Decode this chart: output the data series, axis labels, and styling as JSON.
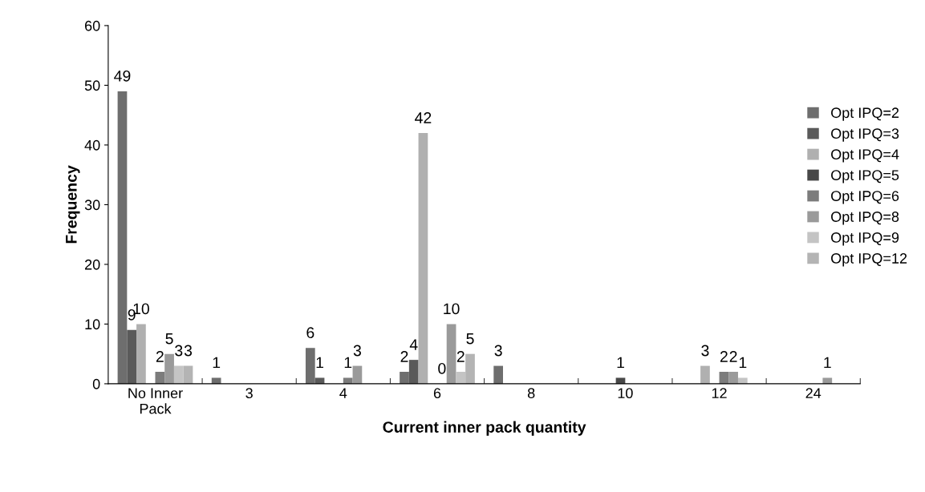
{
  "chart_data": {
    "type": "bar",
    "xlabel": "Current inner pack quantity",
    "ylabel": "Frequency",
    "categories": [
      "No Inner\nPack",
      "3",
      "4",
      "6",
      "8",
      "10",
      "12",
      "24"
    ],
    "series": [
      {
        "name": "Opt IPQ=2",
        "color": "#6e6e6e",
        "values": [
          49,
          1,
          6,
          2,
          3,
          0,
          0,
          0
        ],
        "value_labels": [
          "49",
          "1",
          "6",
          "2",
          "3",
          null,
          null,
          null
        ]
      },
      {
        "name": "Opt IPQ=3",
        "color": "#5a5a5a",
        "values": [
          9,
          0,
          1,
          4,
          0,
          0,
          0,
          0
        ],
        "value_labels": [
          "9",
          null,
          "1",
          "4",
          null,
          null,
          null,
          null
        ]
      },
      {
        "name": "Opt IPQ=4",
        "color": "#b0b0b0",
        "values": [
          10,
          0,
          0,
          42,
          0,
          0,
          3,
          0
        ],
        "value_labels": [
          "10",
          null,
          null,
          "42",
          null,
          null,
          "3",
          null
        ]
      },
      {
        "name": "Opt IPQ=5",
        "color": "#484848",
        "values": [
          0,
          0,
          0,
          0,
          0,
          1,
          0,
          0
        ],
        "value_labels": [
          null,
          null,
          null,
          null,
          null,
          "1",
          null,
          null
        ]
      },
      {
        "name": "Opt IPQ=6",
        "color": "#7c7c7c",
        "values": [
          2,
          0,
          1,
          0,
          0,
          0,
          2,
          0
        ],
        "value_labels": [
          "2",
          null,
          "1",
          "0",
          null,
          null,
          "2",
          null
        ]
      },
      {
        "name": "Opt IPQ=8",
        "color": "#9a9a9a",
        "values": [
          5,
          0,
          3,
          10,
          0,
          0,
          2,
          1
        ],
        "value_labels": [
          "5",
          null,
          "3",
          "10",
          null,
          null,
          "2",
          "1"
        ]
      },
      {
        "name": "Opt IPQ=9",
        "color": "#c4c4c4",
        "values": [
          3,
          0,
          0,
          2,
          0,
          0,
          1,
          0
        ],
        "value_labels": [
          "3",
          null,
          null,
          "2",
          null,
          null,
          "1",
          null
        ]
      },
      {
        "name": "Opt IPQ=12",
        "color": "#b4b4b4",
        "values": [
          3,
          0,
          0,
          5,
          0,
          0,
          0,
          0
        ],
        "value_labels": [
          "3",
          null,
          null,
          "5",
          null,
          null,
          null,
          null
        ]
      }
    ],
    "ylim": [
      0,
      60
    ],
    "yticks": [
      0,
      10,
      20,
      30,
      40,
      50,
      60
    ],
    "grid": false,
    "legend": "right"
  }
}
